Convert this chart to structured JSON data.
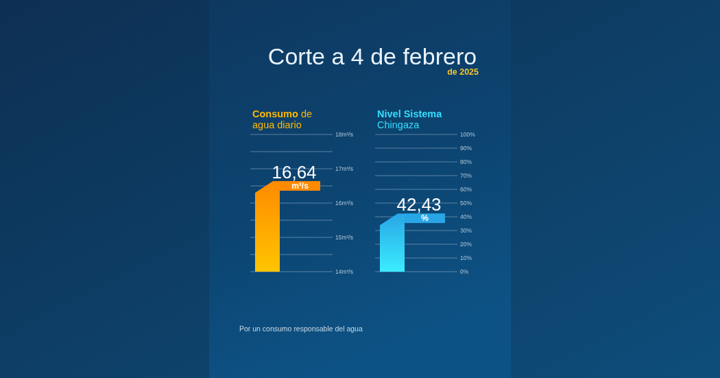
{
  "chart_data": [
    {
      "type": "other",
      "title": "Corte a 4 de febrero",
      "subtitle": "de 2025",
      "annotations": [
        "Por un consumo responsable del agua"
      ]
    },
    {
      "type": "bar",
      "title": "Consumo de agua diario",
      "categories": [
        null
      ],
      "values": [
        16.64
      ],
      "color": "#ff8a00",
      "value_labels": [
        "16,64"
      ],
      "annotations": [
        "m³/s"
      ],
      "ylim": [
        14,
        18
      ],
      "yticks": [
        {
          "value": 14,
          "label": "14m³/s"
        },
        {
          "value": 14.5,
          "label": null
        },
        {
          "value": 15,
          "label": "15m³/s"
        },
        {
          "value": 15.5,
          "label": null
        },
        {
          "value": 16,
          "label": "16m³/s"
        },
        {
          "value": 16.5,
          "label": null
        },
        {
          "value": 17,
          "label": "17m³/s"
        },
        {
          "value": 17.5,
          "label": null
        },
        {
          "value": 18,
          "label": "18m³/s"
        }
      ],
      "grid": "y",
      "tick_labels": "y"
    },
    {
      "type": "bar",
      "title": "Nivel Sistema Chingaza",
      "categories": [
        null
      ],
      "values": [
        42.43
      ],
      "color": "#29a6e6",
      "value_labels": [
        "42,43"
      ],
      "annotations": [
        "%"
      ],
      "ylim": [
        0,
        100
      ],
      "yticks": [
        {
          "value": 0,
          "label": "0%"
        },
        {
          "value": 10,
          "label": "10%"
        },
        {
          "value": 20,
          "label": "20%"
        },
        {
          "value": 30,
          "label": "30%"
        },
        {
          "value": 40,
          "label": "40%"
        },
        {
          "value": 50,
          "label": "50%"
        },
        {
          "value": 60,
          "label": "60%"
        },
        {
          "value": 70,
          "label": "70%"
        },
        {
          "value": 80,
          "label": "80%"
        },
        {
          "value": 90,
          "label": "90%"
        },
        {
          "value": 100,
          "label": "100%"
        }
      ],
      "grid": "y",
      "tick_labels": "y"
    }
  ]
}
